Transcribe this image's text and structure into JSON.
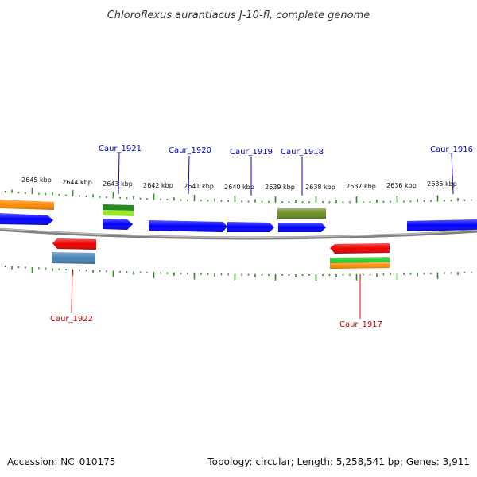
{
  "title": "Chloroflexus aurantiacus J-10-fl, complete genome",
  "footer": {
    "accession": "Accession: NC_010175",
    "summary": "Topology: circular; Length: 5,258,541 bp; Genes: 3,911"
  },
  "scale_labels": [
    "2645 kbp",
    "2644 kbp",
    "2643 kbp",
    "2642 kbp",
    "2641 kbp",
    "2640 kbp",
    "2639 kbp",
    "2638 kbp",
    "2637 kbp",
    "2636 kbp",
    "2635 kbp"
  ],
  "gene_labels": {
    "forward": [
      "Caur_1921",
      "Caur_1920",
      "Caur_1919",
      "Caur_1918",
      "Caur_1916"
    ],
    "reverse": [
      "Caur_1922",
      "Caur_1917"
    ]
  },
  "colors": {
    "forward_label": "#0000cc",
    "reverse_label": "#cc0000",
    "cds": "#0000ff",
    "rev_cds": "#ee0000",
    "backbone": "#808080",
    "ticks": "#2e8b22",
    "orange": "#ff8c00",
    "steelblue": "#4682b4",
    "darkgreen": "#228b22",
    "lightgreen": "#99e633",
    "olive": "#6b8e23",
    "green2": "#33cc33"
  }
}
